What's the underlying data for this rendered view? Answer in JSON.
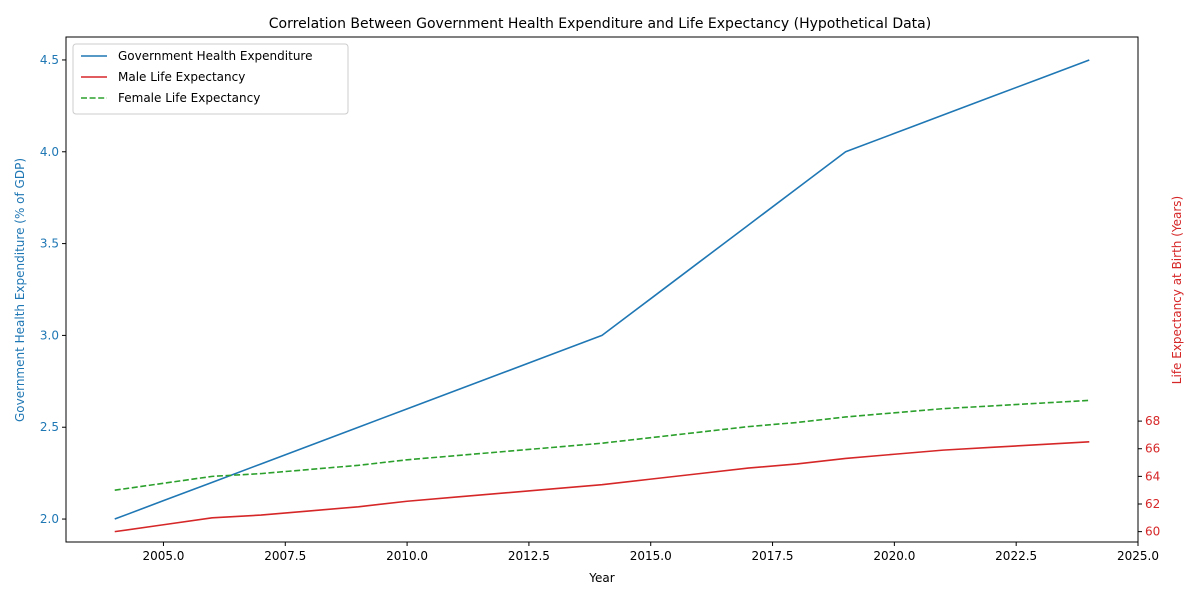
{
  "chart_data": {
    "type": "line",
    "title": "Correlation Between Government Health Expenditure and Life Expectancy (Hypothetical Data)",
    "xlabel": "Year",
    "ylabel_left": "Government Health Expenditure (% of GDP)",
    "ylabel_right": "Life Expectancy at Birth (Years)",
    "xlim": [
      2003,
      2025
    ],
    "ylim_left": [
      1.875,
      4.625
    ],
    "ylim_right": [
      59.25,
      95.8
    ],
    "x_ticks": [
      "2005.0",
      "2007.5",
      "2010.0",
      "2012.5",
      "2015.0",
      "2017.5",
      "2020.0",
      "2022.5",
      "2025.0"
    ],
    "y_ticks_left": [
      "2.0",
      "2.5",
      "3.0",
      "3.5",
      "4.0",
      "4.5"
    ],
    "y_ticks_right": [
      "60",
      "62",
      "64",
      "66",
      "68"
    ],
    "grid": false,
    "legend_position": "top-left",
    "series": [
      {
        "name": "Government Health Expenditure",
        "axis": "left",
        "color": "#1f77b4",
        "style": "solid",
        "x": [
          2004,
          2005,
          2006,
          2007,
          2008,
          2009,
          2010,
          2011,
          2012,
          2013,
          2014,
          2015,
          2016,
          2017,
          2018,
          2019,
          2020,
          2021,
          2022,
          2023,
          2024
        ],
        "y": [
          2.0,
          2.1,
          2.2,
          2.3,
          2.4,
          2.5,
          2.6,
          2.7,
          2.8,
          2.9,
          3.0,
          3.2,
          3.4,
          3.6,
          3.8,
          4.0,
          4.1,
          4.2,
          4.3,
          4.4,
          4.5
        ]
      },
      {
        "name": "Male Life Expectancy",
        "axis": "right",
        "color": "#d62728",
        "style": "solid",
        "x": [
          2004,
          2005,
          2006,
          2007,
          2008,
          2009,
          2010,
          2011,
          2012,
          2013,
          2014,
          2015,
          2016,
          2017,
          2018,
          2019,
          2020,
          2021,
          2022,
          2023,
          2024
        ],
        "y": [
          60.0,
          60.5,
          61.0,
          61.2,
          61.5,
          61.8,
          62.2,
          62.5,
          62.8,
          63.1,
          63.4,
          63.8,
          64.2,
          64.6,
          64.9,
          65.3,
          65.6,
          65.9,
          66.1,
          66.3,
          66.5
        ]
      },
      {
        "name": "Female Life Expectancy",
        "axis": "right",
        "color": "#2ca02c",
        "style": "dashed",
        "x": [
          2004,
          2005,
          2006,
          2007,
          2008,
          2009,
          2010,
          2011,
          2012,
          2013,
          2014,
          2015,
          2016,
          2017,
          2018,
          2019,
          2020,
          2021,
          2022,
          2023,
          2024
        ],
        "y": [
          63.0,
          63.5,
          64.0,
          64.2,
          64.5,
          64.8,
          65.2,
          65.5,
          65.8,
          66.1,
          66.4,
          66.8,
          67.2,
          67.6,
          67.9,
          68.3,
          68.6,
          68.9,
          69.1,
          69.3,
          69.5
        ]
      }
    ]
  },
  "colors": {
    "left_axis": "#1f77b4",
    "right_axis": "#d62728"
  }
}
